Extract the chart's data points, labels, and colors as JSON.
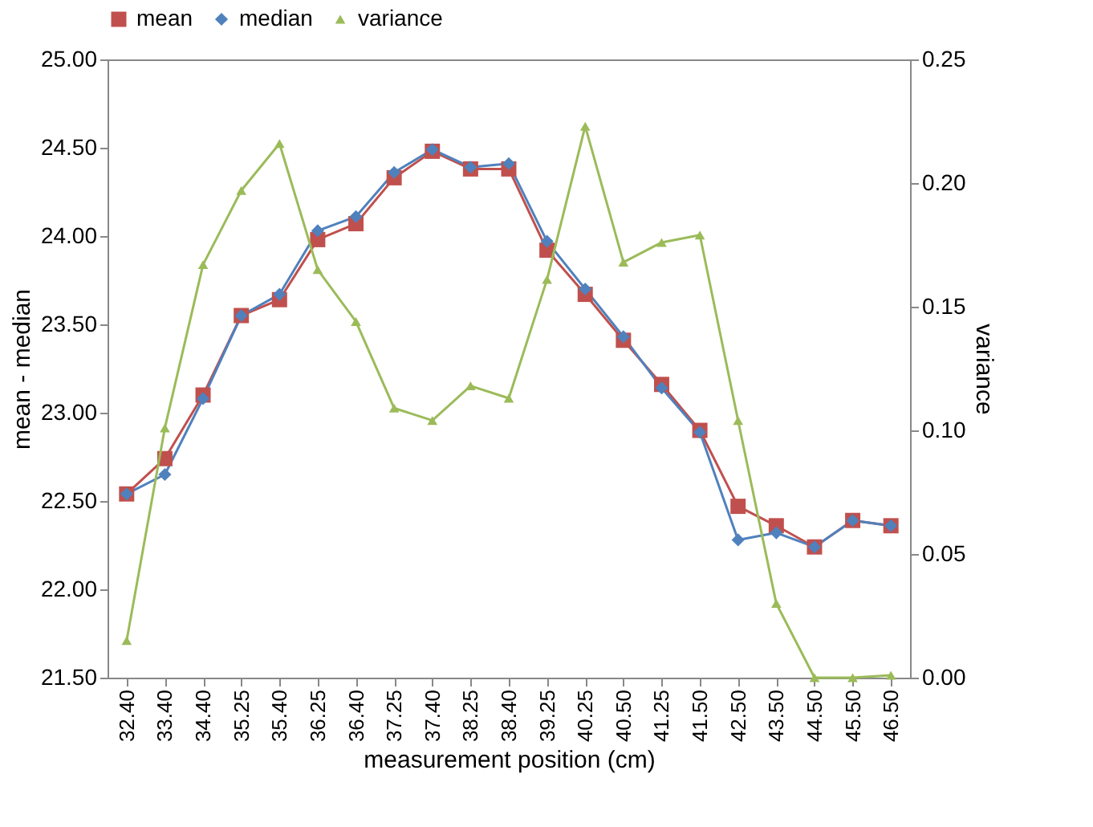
{
  "chart_data": {
    "type": "line",
    "xlabel": "measurement position (cm)",
    "ylabel": "mean - median",
    "y2label": "variance",
    "categories": [
      "32.40",
      "33.40",
      "34.40",
      "35.25",
      "35.40",
      "36.25",
      "36.40",
      "37.25",
      "37.40",
      "38.25",
      "38.40",
      "39.25",
      "40.25",
      "40.50",
      "41.25",
      "41.50",
      "42.50",
      "43.50",
      "44.50",
      "45.50",
      "46.50"
    ],
    "series": [
      {
        "name": "mean",
        "color": "#c0504d",
        "marker": "square",
        "values": [
          22.54,
          22.74,
          23.1,
          23.55,
          23.64,
          23.98,
          24.07,
          24.33,
          24.48,
          24.38,
          24.38,
          23.92,
          23.67,
          23.41,
          23.16,
          22.9,
          22.47,
          22.36,
          22.24,
          22.39,
          22.36
        ]
      },
      {
        "name": "median",
        "color": "#4f81bd",
        "marker": "diamond",
        "values": [
          22.54,
          22.65,
          23.08,
          23.55,
          23.67,
          24.03,
          24.11,
          24.36,
          24.49,
          24.39,
          24.41,
          23.97,
          23.7,
          23.43,
          23.14,
          22.89,
          22.28,
          22.32,
          22.24,
          22.39,
          22.36
        ]
      },
      {
        "name": "variance",
        "color": "#9bbb59",
        "marker": "triangle",
        "axis": "y2",
        "values": [
          0.015,
          0.101,
          0.167,
          0.197,
          0.216,
          0.165,
          0.144,
          0.109,
          0.104,
          0.118,
          0.113,
          0.161,
          0.223,
          0.168,
          0.176,
          0.179,
          0.104,
          0.03,
          0.0,
          0.0,
          0.001
        ]
      }
    ],
    "ylim": [
      21.5,
      25.0
    ],
    "yticks": [
      {
        "value": 21.5,
        "label": "21.50"
      },
      {
        "value": 22.0,
        "label": "22.00"
      },
      {
        "value": 22.5,
        "label": "22.50"
      },
      {
        "value": 23.0,
        "label": "23.00"
      },
      {
        "value": 23.5,
        "label": "23.50"
      },
      {
        "value": 24.0,
        "label": "24.00"
      },
      {
        "value": 24.5,
        "label": "24.50"
      },
      {
        "value": 25.0,
        "label": "25.00"
      }
    ],
    "y2lim": [
      0.0,
      0.25
    ],
    "y2ticks": [
      {
        "value": 0.0,
        "label": "0.00"
      },
      {
        "value": 0.05,
        "label": "0.05"
      },
      {
        "value": 0.1,
        "label": "0.10"
      },
      {
        "value": 0.15,
        "label": "0.15"
      },
      {
        "value": 0.2,
        "label": "0.20"
      },
      {
        "value": 0.25,
        "label": "0.25"
      }
    ],
    "legend": "top",
    "grid": false,
    "line_style": "solid"
  }
}
